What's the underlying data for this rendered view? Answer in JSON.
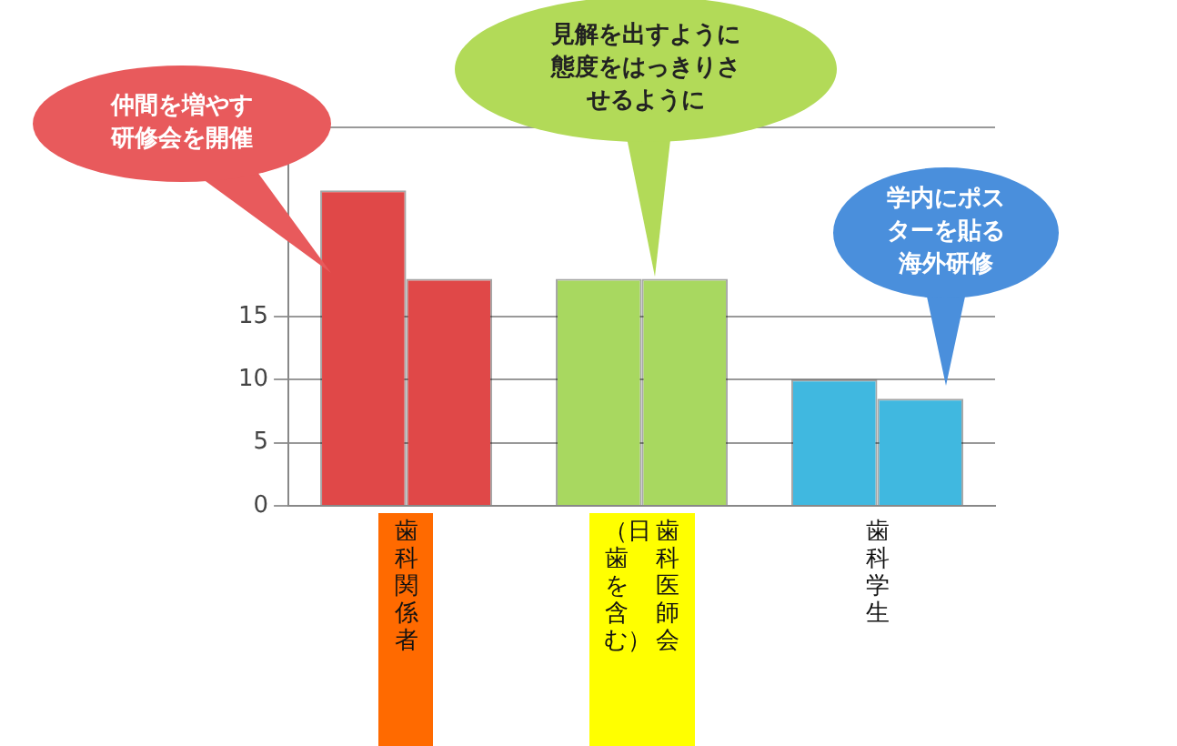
{
  "chart_data": {
    "type": "bar",
    "categories": [
      "歯科関係者",
      "歯科医師会（日歯を含む）",
      "歯科学生"
    ],
    "series": [
      {
        "colors": [
          "#e04848",
          "#a8d860",
          "#40b8e0"
        ],
        "values": [
          25,
          18,
          10
        ]
      },
      {
        "colors": [
          "#e04848",
          "#a8d860",
          "#40b8e0"
        ],
        "values": [
          18,
          18,
          8.5
        ]
      }
    ],
    "ylim": [
      0,
      30
    ],
    "yticks": [
      0,
      5,
      10,
      15,
      {
        "value": 30,
        "label": null
      }
    ],
    "grid": "y",
    "legend": false,
    "annotations": [
      "仲間を増やす研修会を開催",
      "見解を出すように態度をはっきりさせるように",
      "学内にポスターを貼る海外研修"
    ]
  }
}
